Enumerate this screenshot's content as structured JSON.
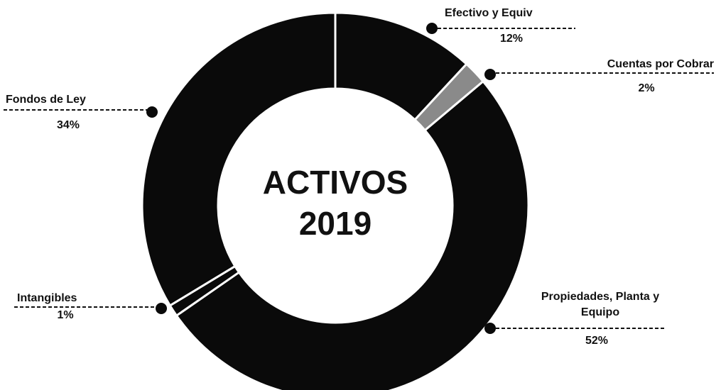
{
  "chart_data": {
    "type": "donut",
    "title": "ACTIVOS 2019",
    "categories": [
      "Efectivo y Equiv",
      "Cuentas por Cobrar",
      "Propiedades, Planta y Equipo",
      "Intangibles",
      "Fondos de Ley"
    ],
    "values": [
      12,
      2,
      52,
      1,
      34
    ],
    "value_labels": [
      "12%",
      "2%",
      "52%",
      "1%",
      "34%"
    ],
    "colors": [
      "#0a0a0a",
      "#8a8a8a",
      "#0a0a0a",
      "#0a0a0a",
      "#0a0a0a"
    ]
  }
}
